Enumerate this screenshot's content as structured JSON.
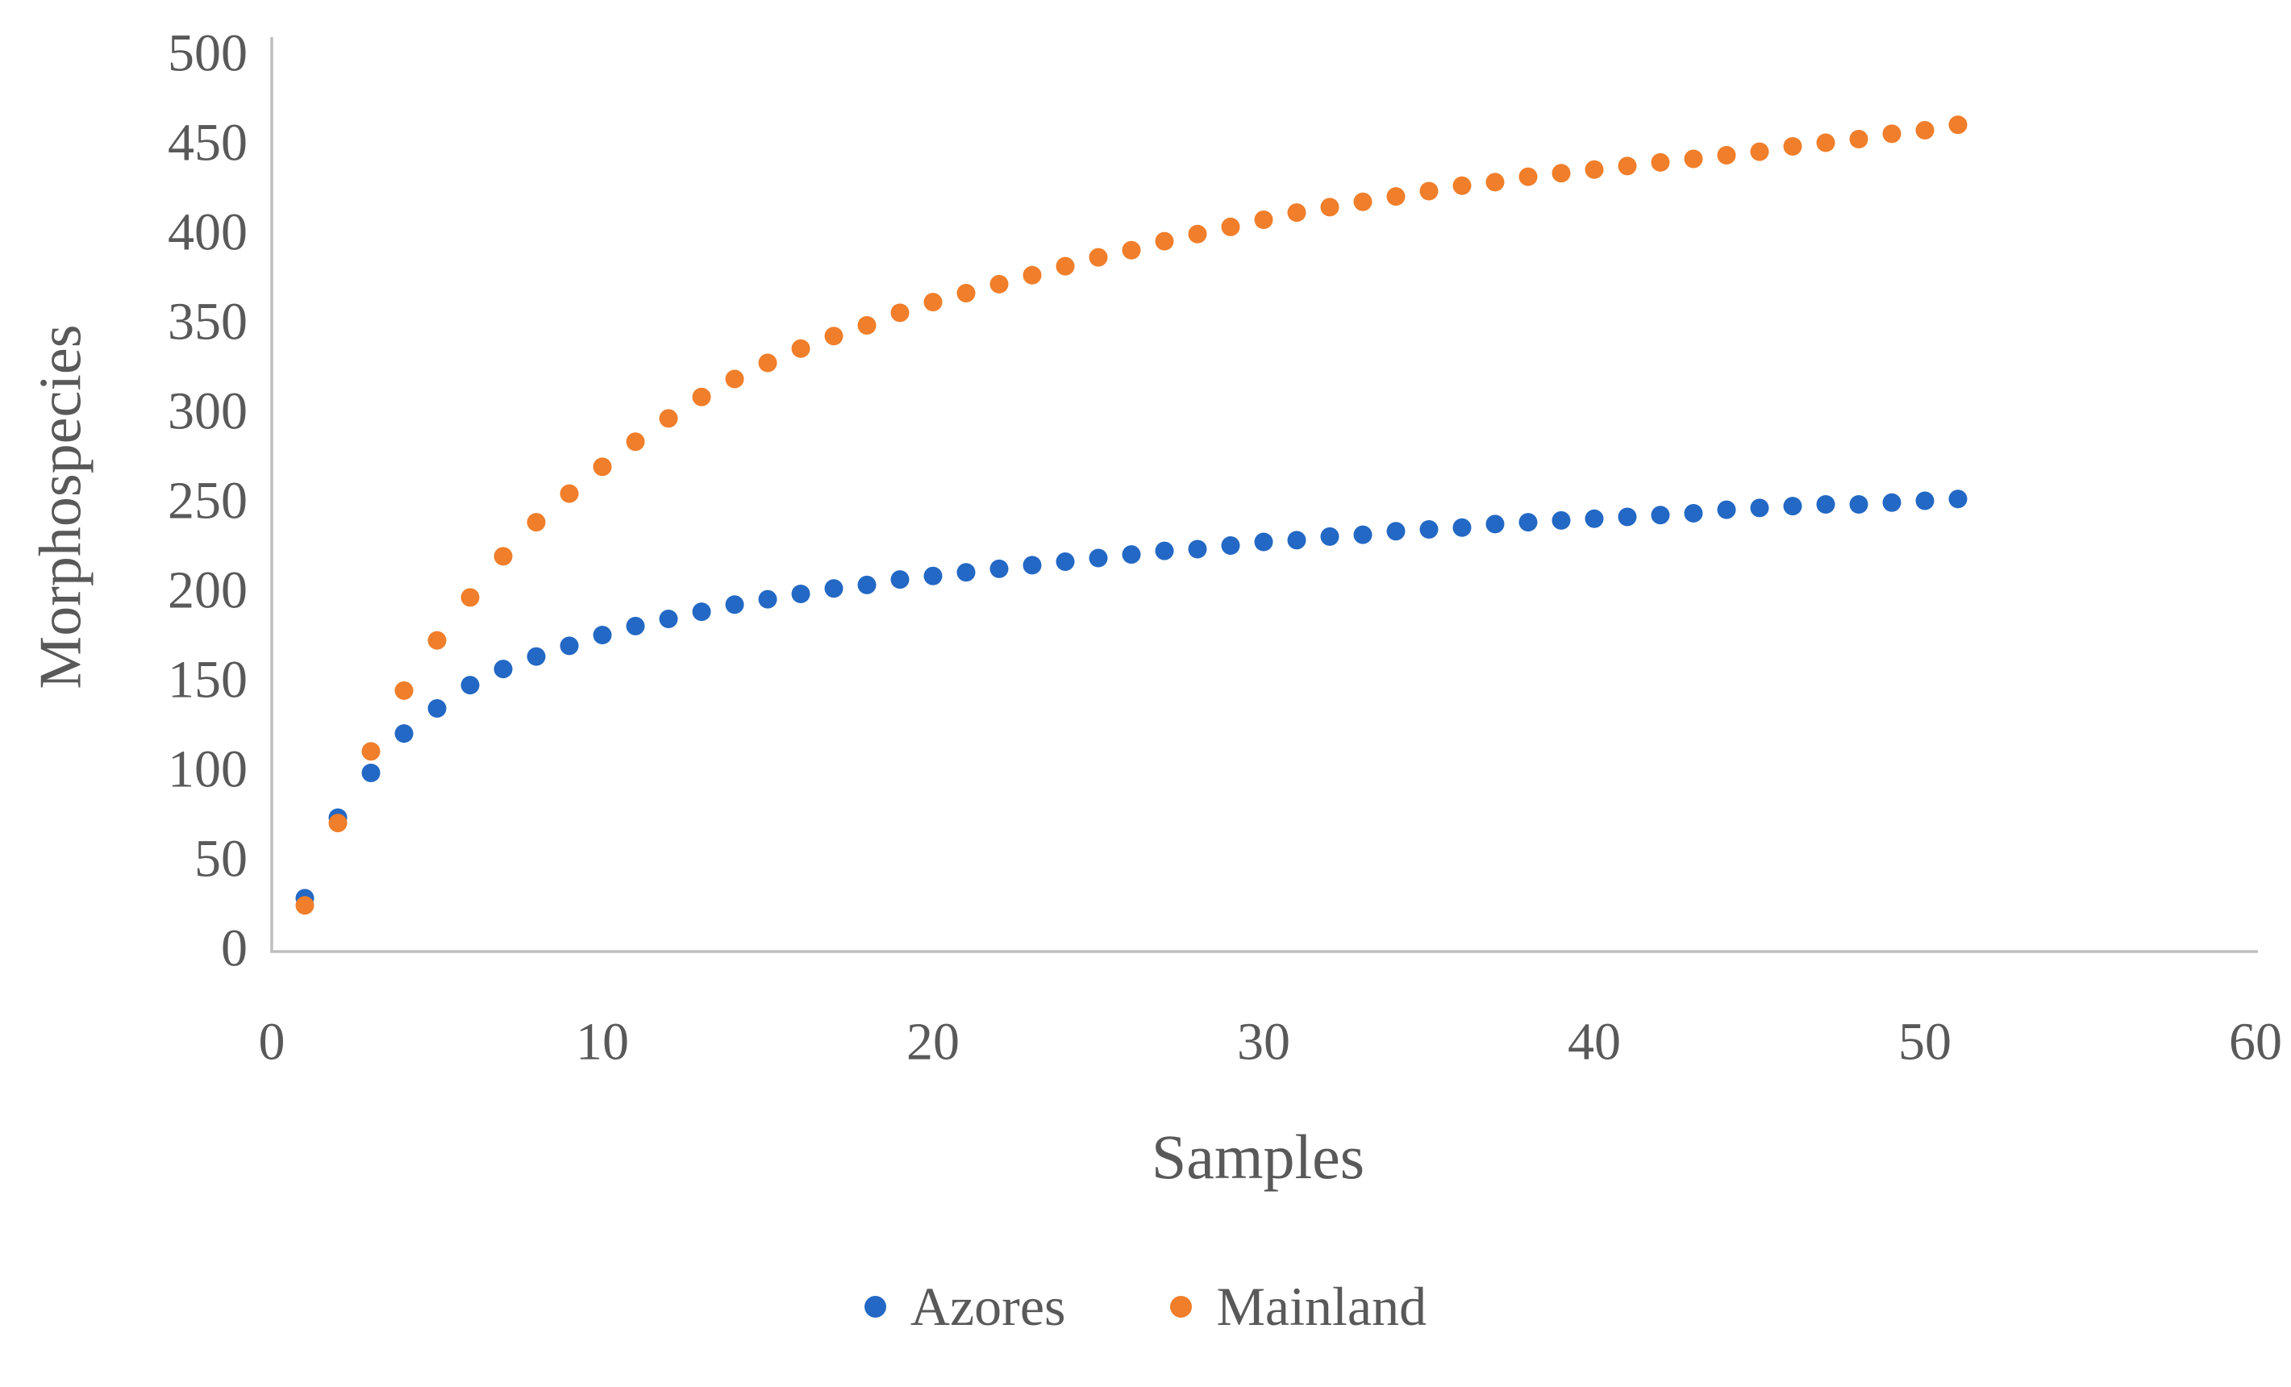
{
  "chart_data": {
    "type": "scatter",
    "title": "",
    "xlabel": "Samples",
    "ylabel": "Morphospecies",
    "xlim": [
      0,
      60
    ],
    "ylim": [
      0,
      500
    ],
    "x_ticks": [
      0,
      10,
      20,
      30,
      40,
      50,
      60
    ],
    "y_ticks": [
      0,
      50,
      100,
      150,
      200,
      250,
      300,
      350,
      400,
      450,
      500
    ],
    "grid": false,
    "legend_position": "bottom-center",
    "x": [
      1,
      2,
      3,
      4,
      5,
      6,
      7,
      8,
      9,
      10,
      11,
      12,
      13,
      14,
      15,
      16,
      17,
      18,
      19,
      20,
      21,
      22,
      23,
      24,
      25,
      26,
      27,
      28,
      29,
      30,
      31,
      32,
      33,
      34,
      35,
      36,
      37,
      38,
      39,
      40,
      41,
      42,
      43,
      44,
      45,
      46,
      47,
      48,
      49,
      50,
      51
    ],
    "series": [
      {
        "name": "Azores",
        "color": "#2368c4",
        "values": [
          28,
          73,
          98,
          120,
          134,
          147,
          156,
          163,
          169,
          175,
          180,
          184,
          188,
          192,
          195,
          198,
          201,
          203,
          206,
          208,
          210,
          212,
          214,
          216,
          218,
          220,
          222,
          223,
          225,
          227,
          228,
          230,
          231,
          233,
          234,
          235,
          237,
          238,
          239,
          240,
          241,
          242,
          243,
          245,
          246,
          247,
          248,
          248,
          249,
          250,
          251
        ]
      },
      {
        "name": "Mainland",
        "color": "#f07e2a",
        "values": [
          24,
          70,
          110,
          144,
          172,
          196,
          219,
          238,
          254,
          269,
          283,
          296,
          308,
          318,
          327,
          335,
          342,
          348,
          355,
          361,
          366,
          371,
          376,
          381,
          386,
          390,
          395,
          399,
          403,
          407,
          411,
          414,
          417,
          420,
          423,
          426,
          428,
          431,
          433,
          435,
          437,
          439,
          441,
          443,
          445,
          448,
          450,
          452,
          455,
          457,
          460
        ]
      }
    ],
    "axis_color": "#bfbfbf",
    "text_color": "#595959"
  }
}
